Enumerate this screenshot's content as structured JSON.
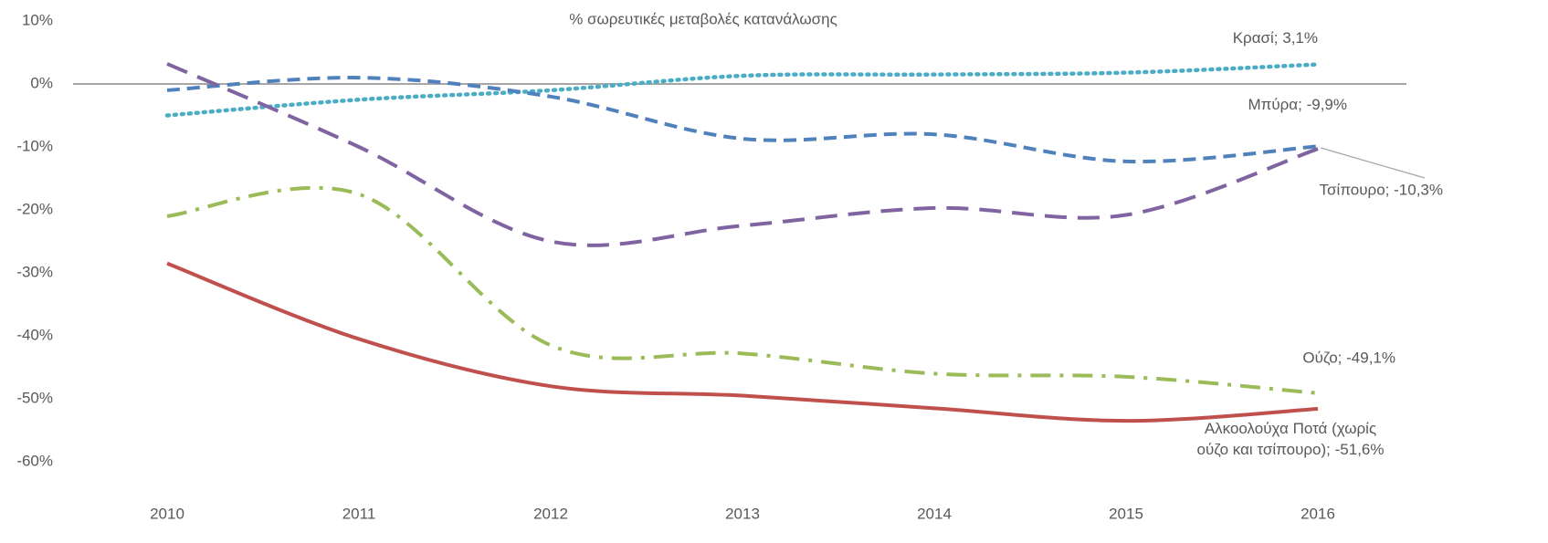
{
  "chart_data": {
    "type": "line",
    "title": "% σωρευτικές μεταβολές κατανάλωσης",
    "categories": [
      "2010",
      "2011",
      "2012",
      "2013",
      "2014",
      "2015",
      "2016"
    ],
    "ylim": [
      -60,
      10
    ],
    "yticks": [
      {
        "value": -60,
        "label": "-60%"
      },
      {
        "value": -50,
        "label": "-50%"
      },
      {
        "value": -40,
        "label": "-40%"
      },
      {
        "value": -30,
        "label": "-30%"
      },
      {
        "value": -20,
        "label": "-20%"
      },
      {
        "value": -10,
        "label": "-10%"
      },
      {
        "value": 0,
        "label": "0%"
      },
      {
        "value": 10,
        "label": "10%"
      }
    ],
    "series": [
      {
        "name": "Κρασί",
        "color": "#4bacc6",
        "dash": "dotted",
        "values": [
          -5,
          -2.5,
          -1,
          1.3,
          1.5,
          1.8,
          3.1
        ],
        "value_labels": [
          null,
          null,
          null,
          null,
          null,
          null,
          "Κρασί; 3,1%"
        ]
      },
      {
        "name": "Μπύρα",
        "color": "#4f81bd",
        "dash": "dashed",
        "values": [
          -1,
          1,
          -2,
          -8.7,
          -8,
          -12.3,
          -9.9
        ],
        "value_labels": [
          null,
          null,
          null,
          null,
          null,
          null,
          "Μπύρα; -9,9%"
        ]
      },
      {
        "name": "Τσίπουρο",
        "color": "#8064a2",
        "dash": "longdash",
        "values": [
          3.2,
          -10,
          -25,
          -22.5,
          -19.7,
          -20.8,
          -10.3
        ],
        "value_labels": [
          null,
          null,
          null,
          null,
          null,
          null,
          "Τσίπουρο; -10,3%"
        ]
      },
      {
        "name": "Ούζο",
        "color": "#9bbb59",
        "dash": "dashdot",
        "values": [
          -21,
          -17.5,
          -41.5,
          -42.8,
          -46,
          -46.5,
          -49.1
        ],
        "value_labels": [
          null,
          null,
          null,
          null,
          null,
          null,
          "Ούζο; -49,1%"
        ]
      },
      {
        "name": "Αλκοολούχα Ποτά (χωρίς ούζο και τσίπουρο)",
        "color": "#c0504d",
        "dash": "solid",
        "values": [
          -28.5,
          -40.5,
          -48,
          -49.5,
          -51.5,
          -53.5,
          -51.6
        ],
        "value_labels": [
          null,
          null,
          null,
          null,
          null,
          null,
          "Αλκοολούχα Ποτά (χωρίς ούζο και τσίπουρο); -51,6%"
        ]
      }
    ]
  }
}
